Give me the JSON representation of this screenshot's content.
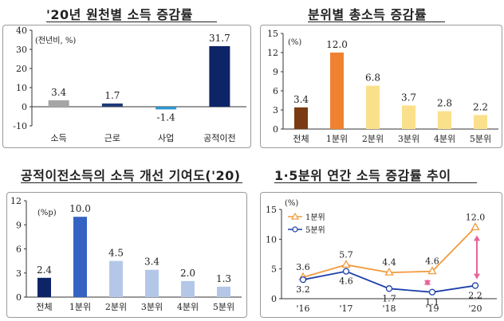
{
  "titles": {
    "p1": "'20년 원천별 소득 증감률",
    "p2": "분위별 총소득 증감률",
    "p3": "공적이전소득의 소득 개선 기여도('20)",
    "p4": "1·5분위 연간 소득 증감률 추이"
  },
  "chart_data": [
    {
      "type": "bar",
      "title": "'20년 원천별 소득 증감률",
      "unit": "(전년비, %)",
      "categories": [
        "소득",
        "근로",
        "사업",
        "공적이전"
      ],
      "values": [
        3.4,
        1.7,
        -1.4,
        31.7
      ],
      "value_labels": [
        "3.4",
        "1.7",
        "-1.4",
        "31.7"
      ],
      "colors": [
        "#a6a6a6",
        "#1f3a78",
        "#2f97d1",
        "#0d2466"
      ],
      "ylim": [
        -10,
        40
      ],
      "yticks": [
        "-10",
        "0",
        "10",
        "20",
        "30",
        "40"
      ],
      "grid": false
    },
    {
      "type": "bar",
      "title": "분위별 총소득 증감률",
      "unit": "(%)",
      "categories": [
        "전체",
        "1분위",
        "2분위",
        "3분위",
        "4분위",
        "5분위"
      ],
      "values": [
        3.4,
        12.0,
        6.8,
        3.7,
        2.8,
        2.2
      ],
      "value_labels": [
        "3.4",
        "12.0",
        "6.8",
        "3.7",
        "2.8",
        "2.2"
      ],
      "colors": [
        "#7a3b12",
        "#ef8230",
        "#fbe08c",
        "#fbe08c",
        "#fbe08c",
        "#fbe08c"
      ],
      "ylim": [
        0,
        15
      ],
      "yticks": [
        "0",
        "3",
        "6",
        "9",
        "12",
        "15"
      ],
      "grid": false
    },
    {
      "type": "bar",
      "title": "공적이전소득의 소득 개선 기여도('20)",
      "unit": "(%p)",
      "categories": [
        "전체",
        "1분위",
        "2분위",
        "3분위",
        "4분위",
        "5분위"
      ],
      "values": [
        2.4,
        10.0,
        4.5,
        3.4,
        2.0,
        1.3
      ],
      "value_labels": [
        "2.4",
        "10.0",
        "4.5",
        "3.4",
        "2.0",
        "1.3"
      ],
      "colors": [
        "#0d2466",
        "#3563c4",
        "#b4c7e8",
        "#b4c7e8",
        "#b4c7e8",
        "#b4c7e8"
      ],
      "ylim": [
        0,
        12
      ],
      "yticks": [
        "0",
        "3",
        "6",
        "9",
        "12"
      ],
      "grid": false
    },
    {
      "type": "line",
      "title": "1·5분위 연간 소득 증감률 추이",
      "unit": "(%)",
      "x": [
        "'16",
        "'17",
        "'18",
        "'19",
        "'20"
      ],
      "series": [
        {
          "name": "1분위",
          "values": [
            3.6,
            5.7,
            4.4,
            4.6,
            12.0
          ],
          "value_labels": [
            "3.6",
            "5.7",
            "4.4",
            "4.6",
            "12.0"
          ],
          "color": "#f39a3c",
          "marker": "triangle-open"
        },
        {
          "name": "5분위",
          "values": [
            3.2,
            4.6,
            1.7,
            1.1,
            2.2
          ],
          "value_labels": [
            "3.2",
            "4.6",
            "1.7",
            "1.1",
            "2.2"
          ],
          "color": "#1c3faa",
          "marker": "circle-open"
        }
      ],
      "ylim": [
        0,
        15
      ],
      "yticks": [
        "0",
        "5",
        "10",
        "15"
      ],
      "legend": "top-left",
      "gap_arrows": [
        "'19",
        "'20"
      ],
      "gap_arrow_color": "#e8649a",
      "grid": false
    }
  ]
}
